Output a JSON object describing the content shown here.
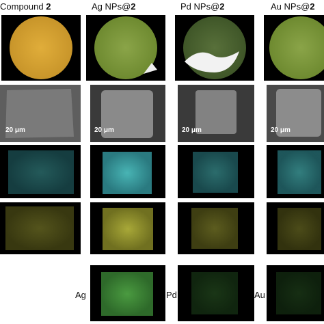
{
  "columns": [
    {
      "label": "Compound ",
      "num": "2"
    },
    {
      "label": "Ag NPs@",
      "num": "2"
    },
    {
      "label": "Pd NPs@",
      "num": "2"
    },
    {
      "label": "Au NPs@",
      "num": "2"
    }
  ],
  "scale_bars": [
    "20 μm",
    "20 μm",
    "20 μm",
    "20 μm"
  ],
  "row_labels": [
    "Ag",
    "Pd",
    "Au"
  ]
}
